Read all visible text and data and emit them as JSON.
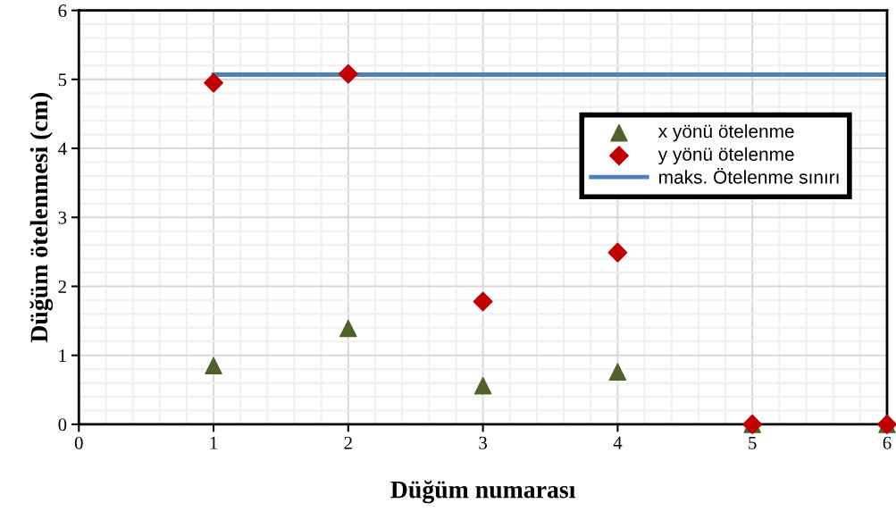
{
  "chart_data": {
    "type": "scatter",
    "xlabel": "Düğüm numarası",
    "ylabel": "Düğüm ötelenmesi (cm)",
    "xlim": [
      0,
      6
    ],
    "xticks": [
      0,
      1,
      2,
      3,
      4,
      5,
      6
    ],
    "ylim": [
      0,
      6
    ],
    "yticks": [
      0,
      1,
      2,
      3,
      4,
      5,
      6
    ],
    "grid": true,
    "legend": "top right",
    "series": [
      {
        "name": "x yönü ötelenme",
        "marker": "triangle",
        "color": "#4f6228",
        "x": [
          1,
          2,
          3,
          4,
          5,
          6
        ],
        "values": [
          0.85,
          1.39,
          0.56,
          0.76,
          0,
          0
        ]
      },
      {
        "name": "y yönü ötelenme",
        "marker": "diamond",
        "color": "#c00000",
        "x": [
          1,
          2,
          3,
          4,
          5,
          6
        ],
        "values": [
          4.95,
          5.08,
          1.78,
          2.49,
          0,
          0
        ]
      },
      {
        "name": "maks. Ötelenme sınırı",
        "type": "line",
        "marker": "none",
        "line_style": "solid",
        "color": "#4f81bd",
        "x": [
          1,
          6
        ],
        "values": [
          5.07,
          5.07
        ]
      }
    ]
  }
}
